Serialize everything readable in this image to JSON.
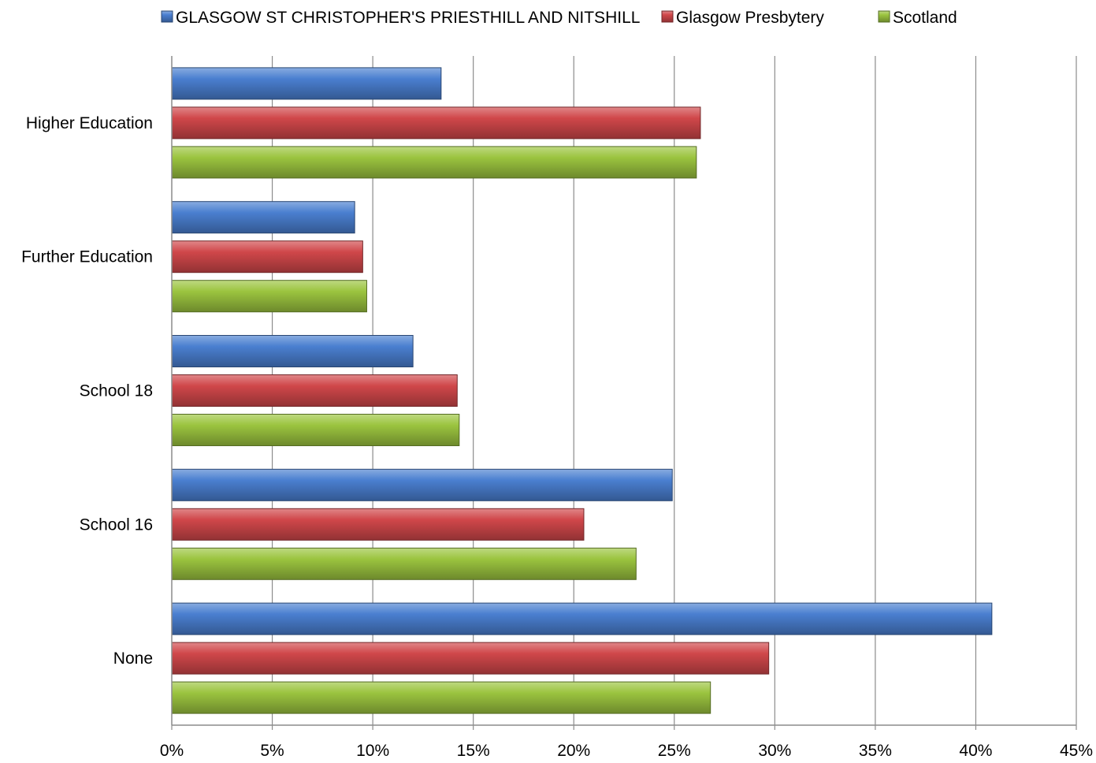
{
  "chart_data": {
    "type": "bar",
    "orientation": "horizontal",
    "categories": [
      "Higher Education",
      "Further Education",
      "School 18",
      "School 16",
      "None"
    ],
    "series": [
      {
        "name": "GLASGOW ST CHRISTOPHER'S PRIESTHILL AND NITSHILL",
        "color": "#4a7fd0",
        "values": [
          13.4,
          9.1,
          12.0,
          24.9,
          40.8
        ]
      },
      {
        "name": "Glasgow Presbytery",
        "color": "#d0474a",
        "values": [
          26.3,
          9.5,
          14.2,
          20.5,
          29.7
        ]
      },
      {
        "name": "Scotland",
        "color": "#9bc43f",
        "values": [
          26.1,
          9.7,
          14.3,
          23.1,
          26.8
        ]
      }
    ],
    "xlim": [
      0,
      45
    ],
    "xticks": [
      0,
      5,
      10,
      15,
      20,
      25,
      30,
      35,
      40,
      45
    ],
    "xtick_labels": [
      "0%",
      "5%",
      "10%",
      "15%",
      "20%",
      "25%",
      "30%",
      "35%",
      "40%",
      "45%"
    ],
    "grid": "vertical",
    "legend_position": "top"
  }
}
